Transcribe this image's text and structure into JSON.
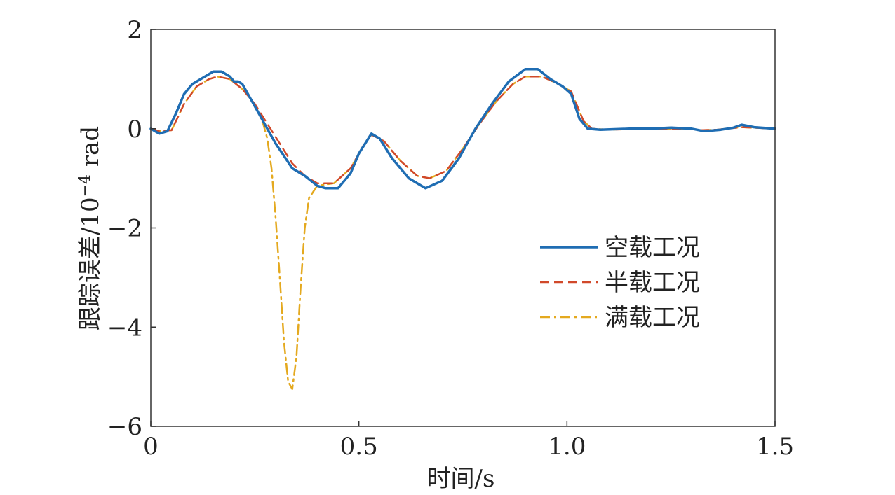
{
  "chart_data": {
    "type": "line",
    "xlabel": "时间/s",
    "ylabel_main": "跟踪误差/10",
    "ylabel_exp": "−4",
    "ylabel_unit": " rad",
    "xlim": [
      0,
      1.5
    ],
    "ylim": [
      -6,
      2
    ],
    "xticks": [
      0,
      0.5,
      1.0,
      1.5
    ],
    "xtick_labels": [
      "0",
      "0.5",
      "1.0",
      "1.5"
    ],
    "yticks": [
      -6,
      -4,
      -2,
      0,
      2
    ],
    "ytick_labels": [
      "−6",
      "−4",
      "−2",
      "0",
      "2"
    ],
    "grid": false,
    "legend_position": "center-right",
    "series": [
      {
        "name": "空载工况",
        "color": "#1f6db3",
        "style": "solid",
        "points": [
          [
            0.0,
            0.0
          ],
          [
            0.02,
            -0.1
          ],
          [
            0.04,
            -0.05
          ],
          [
            0.06,
            0.3
          ],
          [
            0.08,
            0.7
          ],
          [
            0.1,
            0.9
          ],
          [
            0.12,
            1.0
          ],
          [
            0.15,
            1.15
          ],
          [
            0.17,
            1.15
          ],
          [
            0.19,
            1.05
          ],
          [
            0.2,
            0.95
          ],
          [
            0.21,
            0.95
          ],
          [
            0.22,
            0.9
          ],
          [
            0.24,
            0.6
          ],
          [
            0.26,
            0.3
          ],
          [
            0.28,
            0.0
          ],
          [
            0.3,
            -0.3
          ],
          [
            0.32,
            -0.55
          ],
          [
            0.34,
            -0.8
          ],
          [
            0.37,
            -0.95
          ],
          [
            0.4,
            -1.15
          ],
          [
            0.42,
            -1.2
          ],
          [
            0.45,
            -1.2
          ],
          [
            0.48,
            -0.9
          ],
          [
            0.5,
            -0.5
          ],
          [
            0.53,
            -0.1
          ],
          [
            0.55,
            -0.2
          ],
          [
            0.58,
            -0.6
          ],
          [
            0.62,
            -1.0
          ],
          [
            0.66,
            -1.2
          ],
          [
            0.7,
            -1.05
          ],
          [
            0.74,
            -0.6
          ],
          [
            0.78,
            0.0
          ],
          [
            0.82,
            0.5
          ],
          [
            0.86,
            0.95
          ],
          [
            0.9,
            1.2
          ],
          [
            0.93,
            1.2
          ],
          [
            0.96,
            1.0
          ],
          [
            0.99,
            0.85
          ],
          [
            1.01,
            0.7
          ],
          [
            1.03,
            0.2
          ],
          [
            1.05,
            0.0
          ],
          [
            1.08,
            -0.02
          ],
          [
            1.15,
            0.0
          ],
          [
            1.2,
            0.0
          ],
          [
            1.25,
            0.02
          ],
          [
            1.3,
            0.0
          ],
          [
            1.33,
            -0.05
          ],
          [
            1.37,
            -0.02
          ],
          [
            1.4,
            0.02
          ],
          [
            1.42,
            0.08
          ],
          [
            1.45,
            0.03
          ],
          [
            1.5,
            0.0
          ]
        ]
      },
      {
        "name": "半载工况",
        "color": "#d1492a",
        "style": "dashed",
        "points": [
          [
            0.0,
            0.0
          ],
          [
            0.02,
            -0.05
          ],
          [
            0.05,
            -0.03
          ],
          [
            0.08,
            0.5
          ],
          [
            0.11,
            0.85
          ],
          [
            0.14,
            1.0
          ],
          [
            0.16,
            1.05
          ],
          [
            0.19,
            1.0
          ],
          [
            0.22,
            0.8
          ],
          [
            0.25,
            0.5
          ],
          [
            0.28,
            0.1
          ],
          [
            0.31,
            -0.3
          ],
          [
            0.34,
            -0.7
          ],
          [
            0.37,
            -0.95
          ],
          [
            0.4,
            -1.1
          ],
          [
            0.44,
            -1.1
          ],
          [
            0.48,
            -0.8
          ],
          [
            0.51,
            -0.35
          ],
          [
            0.53,
            -0.12
          ],
          [
            0.56,
            -0.25
          ],
          [
            0.6,
            -0.65
          ],
          [
            0.64,
            -0.95
          ],
          [
            0.67,
            -1.0
          ],
          [
            0.71,
            -0.85
          ],
          [
            0.75,
            -0.4
          ],
          [
            0.79,
            0.1
          ],
          [
            0.83,
            0.55
          ],
          [
            0.87,
            0.9
          ],
          [
            0.9,
            1.05
          ],
          [
            0.94,
            1.05
          ],
          [
            0.98,
            0.9
          ],
          [
            1.01,
            0.75
          ],
          [
            1.02,
            0.55
          ],
          [
            1.04,
            0.15
          ],
          [
            1.06,
            0.0
          ],
          [
            1.1,
            -0.02
          ],
          [
            1.2,
            0.0
          ],
          [
            1.3,
            0.0
          ],
          [
            1.32,
            -0.03
          ],
          [
            1.36,
            -0.02
          ],
          [
            1.42,
            0.03
          ],
          [
            1.5,
            0.0
          ]
        ]
      },
      {
        "name": "满载工况",
        "color": "#e4a91f",
        "style": "dashdot",
        "points": [
          [
            0.0,
            0.0
          ],
          [
            0.02,
            -0.05
          ],
          [
            0.05,
            -0.03
          ],
          [
            0.08,
            0.5
          ],
          [
            0.11,
            0.85
          ],
          [
            0.14,
            1.0
          ],
          [
            0.16,
            1.05
          ],
          [
            0.19,
            1.0
          ],
          [
            0.22,
            0.8
          ],
          [
            0.25,
            0.5
          ],
          [
            0.27,
            0.1
          ],
          [
            0.28,
            -0.2
          ],
          [
            0.29,
            -0.8
          ],
          [
            0.3,
            -1.8
          ],
          [
            0.31,
            -3.0
          ],
          [
            0.32,
            -4.3
          ],
          [
            0.33,
            -5.1
          ],
          [
            0.34,
            -5.25
          ],
          [
            0.35,
            -4.6
          ],
          [
            0.36,
            -3.2
          ],
          [
            0.37,
            -2.0
          ],
          [
            0.38,
            -1.4
          ],
          [
            0.4,
            -1.15
          ],
          [
            0.44,
            -1.1
          ],
          [
            0.48,
            -0.8
          ],
          [
            0.51,
            -0.35
          ],
          [
            0.53,
            -0.12
          ],
          [
            0.56,
            -0.25
          ],
          [
            0.6,
            -0.65
          ],
          [
            0.64,
            -0.95
          ],
          [
            0.67,
            -1.0
          ],
          [
            0.71,
            -0.85
          ],
          [
            0.75,
            -0.4
          ],
          [
            0.79,
            0.1
          ],
          [
            0.83,
            0.55
          ],
          [
            0.87,
            0.9
          ],
          [
            0.9,
            1.05
          ],
          [
            0.94,
            1.05
          ],
          [
            0.98,
            0.9
          ],
          [
            1.01,
            0.75
          ],
          [
            1.02,
            0.55
          ],
          [
            1.04,
            0.15
          ],
          [
            1.06,
            0.0
          ],
          [
            1.1,
            -0.02
          ],
          [
            1.2,
            0.0
          ],
          [
            1.3,
            0.0
          ],
          [
            1.32,
            -0.03
          ],
          [
            1.36,
            -0.02
          ],
          [
            1.42,
            0.03
          ],
          [
            1.5,
            0.0
          ]
        ]
      }
    ]
  }
}
